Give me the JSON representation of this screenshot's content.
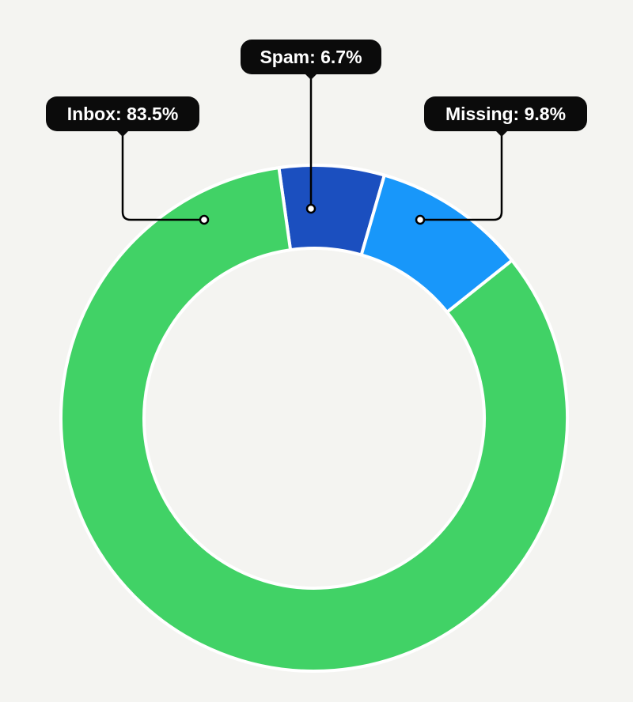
{
  "chart_data": {
    "type": "pie",
    "variant": "donut",
    "title": "",
    "categories": [
      "Inbox",
      "Spam",
      "Missing"
    ],
    "values": [
      83.5,
      6.7,
      9.8
    ],
    "unit": "%",
    "labels": [
      "Inbox: 83.5%",
      "Spam: 6.7%",
      "Missing: 9.8%"
    ],
    "colors": [
      "#41d266",
      "#1b4fbf",
      "#1897fa"
    ],
    "legend": "none",
    "start_angle_deg": -8
  },
  "style": {
    "background": "#f4f4f1",
    "label_background": "#0b0b0b",
    "label_text_color": "#ffffff",
    "leader_color": "#000000",
    "separator_color": "#ffffff"
  }
}
